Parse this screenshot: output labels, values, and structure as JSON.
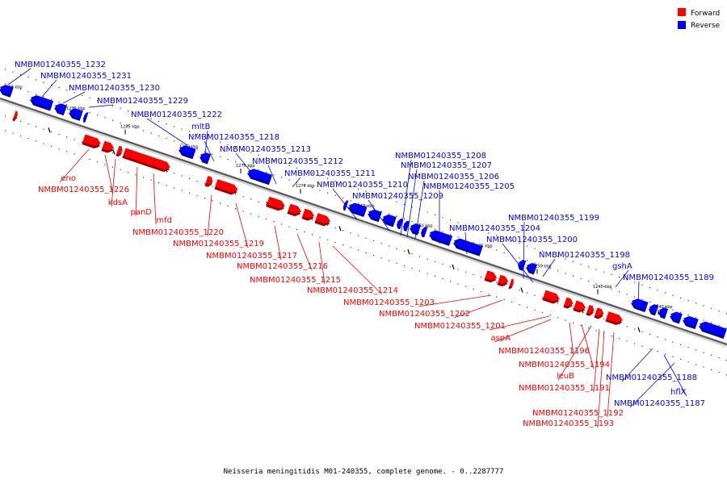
{
  "legend": {
    "forward_label": "Forward",
    "reverse_label": "Reverse",
    "forward_color": "#ff0000",
    "reverse_color": "#0000ff"
  },
  "caption": "Neisseria meningitidis M01-240355, complete genome. - 0..2287777",
  "ticks": [
    "1295 kbp",
    "1290 kbp",
    "1285 kbp",
    "1280 kbp",
    "1275 kbp",
    "1270 kbp",
    "1265 kbp",
    "1260 kbp",
    "1255 kbp",
    "1250 kbp",
    "1245 kbp",
    "1240 kbp"
  ],
  "reverse_labels": [
    "NMBM01240355_1232",
    "NMBM01240355_1231",
    "NMBM01240355_1230",
    "NMBM01240355_1229",
    "NMBM01240355_1222",
    "mltB",
    "NMBM01240355_1218",
    "NMBM01240355_1213",
    "NMBM01240355_1212",
    "NMBM01240355_1211",
    "NMBM01240355_1210",
    "NMBM01240355_1209",
    "NMBM01240355_1208",
    "NMBM01240355_1207",
    "NMBM01240355_1206",
    "NMBM01240355_1205",
    "NMBM01240355_1204",
    "NMBM01240355_1199",
    "NMBM01240355_1200",
    "NMBM01240355_1198",
    "gshA",
    "NMBM01240355_1189",
    "NMBM01240355_1188",
    "hflX",
    "NMBM01240355_1187"
  ],
  "forward_labels": [
    "eno",
    "NMBM01240355_1226",
    "kdsA",
    "panD",
    "mfd",
    "NMBM01240355_1220",
    "NMBM01240355_1219",
    "NMBM01240355_1217",
    "NMBM01240355_1216",
    "NMBM01240355_1215",
    "NMBM01240355_1214",
    "NMBM01240355_1203",
    "NMBM01240355_1202",
    "NMBM01240355_1201",
    "aspA",
    "NMBM01240355_1196",
    "NMBM01240355_1194",
    "leuB",
    "NMBM01240355_1191",
    "NMBM01240355_1192",
    "NMBM01240355_1193"
  ]
}
